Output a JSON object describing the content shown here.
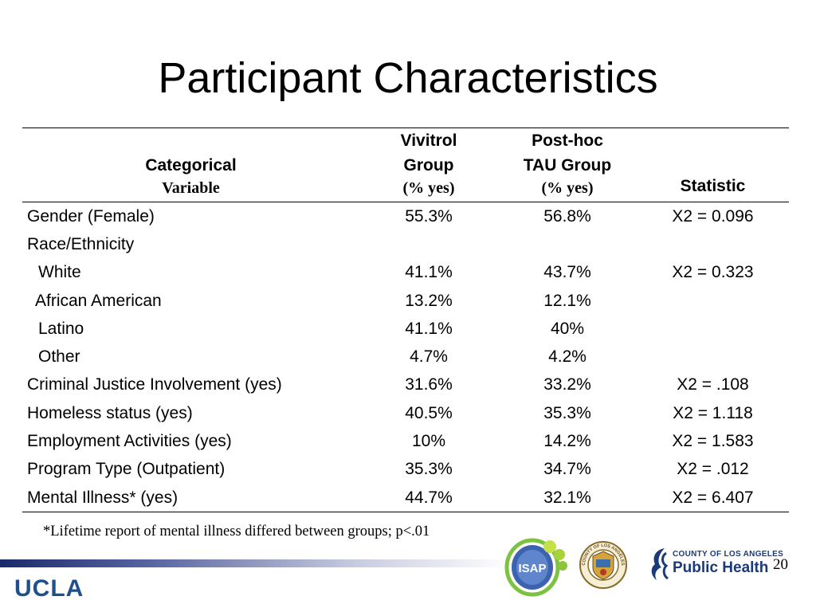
{
  "slide": {
    "title": "Participant Characteristics",
    "page_number": "20",
    "footnote": "*Lifetime report of mental illness differed between groups; p<.01"
  },
  "table": {
    "headers": {
      "variable": {
        "line1": "Categorical",
        "line2": "Variable"
      },
      "vivitrol": {
        "line1": "Vivitrol",
        "line2": "Group",
        "line3": "(% yes)"
      },
      "tau": {
        "line1": "Post-hoc",
        "line2": "TAU Group",
        "line3": "(% yes)"
      },
      "statistic": {
        "line1": "Statistic"
      }
    },
    "rows": [
      {
        "label": "Gender (Female)",
        "vivitrol": "55.3%",
        "tau": "56.8%",
        "statistic": "X2 = 0.096"
      },
      {
        "label": "Race/Ethnicity",
        "vivitrol": "",
        "tau": "",
        "statistic": ""
      },
      {
        "label": "White",
        "vivitrol": "41.1%",
        "tau": "43.7%",
        "statistic": "X2 = 0.323"
      },
      {
        "label": "African American",
        "vivitrol": "13.2%",
        "tau": "12.1%",
        "statistic": ""
      },
      {
        "label": "Latino",
        "vivitrol": "41.1%",
        "tau": "40%",
        "statistic": ""
      },
      {
        "label": "Other",
        "vivitrol": "4.7%",
        "tau": "4.2%",
        "statistic": ""
      },
      {
        "label": "Criminal Justice Involvement (yes)",
        "vivitrol": "31.6%",
        "tau": "33.2%",
        "statistic": "X2 = .108"
      },
      {
        "label": "Homeless status (yes)",
        "vivitrol": "40.5%",
        "tau": "35.3%",
        "statistic": "X2 = 1.118"
      },
      {
        "label": "Employment Activities (yes)",
        "vivitrol": "10%",
        "tau": "14.2%",
        "statistic": "X2 = 1.583"
      },
      {
        "label": "Program Type (Outpatient)",
        "vivitrol": "35.3%",
        "tau": "34.7%",
        "statistic": "X2 = .012"
      },
      {
        "label": "Mental Illness* (yes)",
        "vivitrol": "44.7%",
        "tau": "32.1%",
        "statistic": "X2 = 6.407"
      }
    ]
  },
  "logos": {
    "ucla": "UCLA",
    "isap": "ISAP",
    "county_seal": "COUNTY OF LOS ANGELES",
    "public_health_small": "COUNTY OF LOS ANGELES",
    "public_health_big": "Public Health"
  },
  "colors": {
    "ucla_blue": "#1f4f8c",
    "public_health_blue": "#1a3a7a",
    "bar_dark": "#1b2a6b"
  },
  "icons": [
    "isap-logo-icon",
    "county-seal-icon",
    "public-health-logo-icon"
  ]
}
